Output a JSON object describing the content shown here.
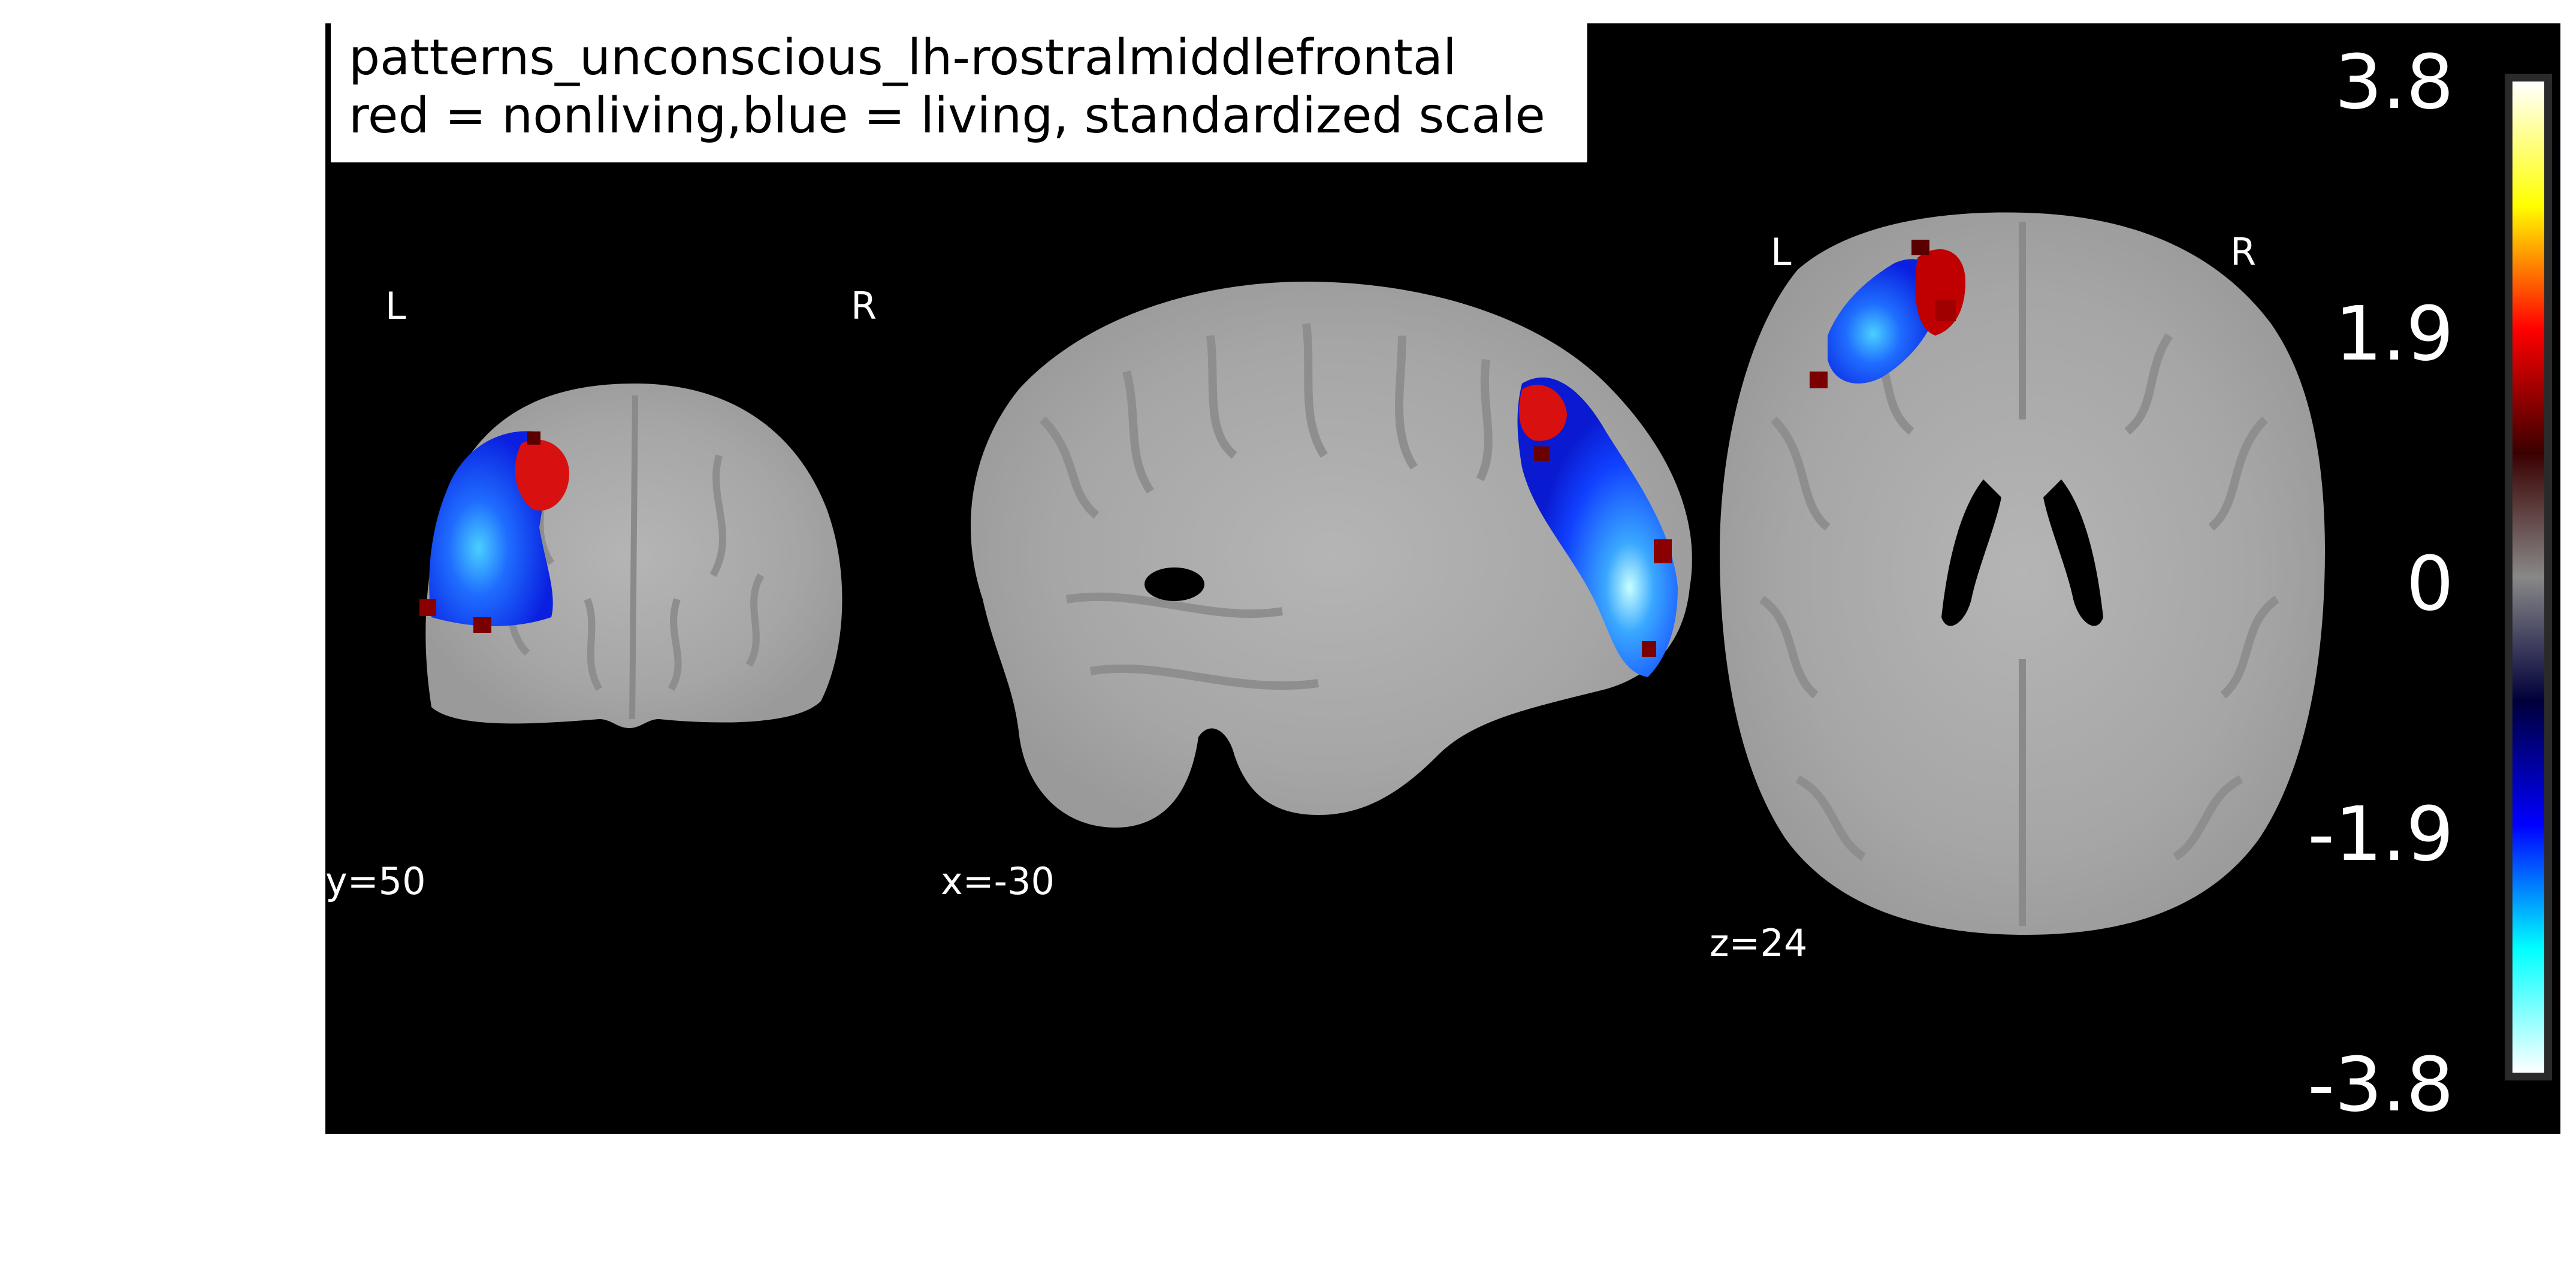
{
  "figure": {
    "title_line1": "patterns_unconscious_lh-rostralmiddlefrontal",
    "title_line2": "red = nonliving,blue = living, standardized scale"
  },
  "views": [
    {
      "name": "coronal",
      "left_label": "L",
      "right_label": "R",
      "coord_label": "y=50"
    },
    {
      "name": "sagittal",
      "coord_label": "x=-30"
    },
    {
      "name": "axial",
      "left_label": "L",
      "right_label": "R",
      "coord_label": "z=24"
    }
  ],
  "colorbar": {
    "ticks": [
      "3.8",
      "1.9",
      "0",
      "-1.9",
      "-3.8"
    ],
    "colormap": "cold_hot",
    "stops": [
      "#ffffff",
      "#ffff00",
      "#ff0000",
      "#3a0000",
      "#888888",
      "#00003a",
      "#0000ff",
      "#00ffff",
      "#ffffff"
    ]
  },
  "colors": {
    "background": "#000000",
    "brain": "#a9a9a9",
    "positive": "#d40000",
    "negative": "#1a3cff"
  }
}
